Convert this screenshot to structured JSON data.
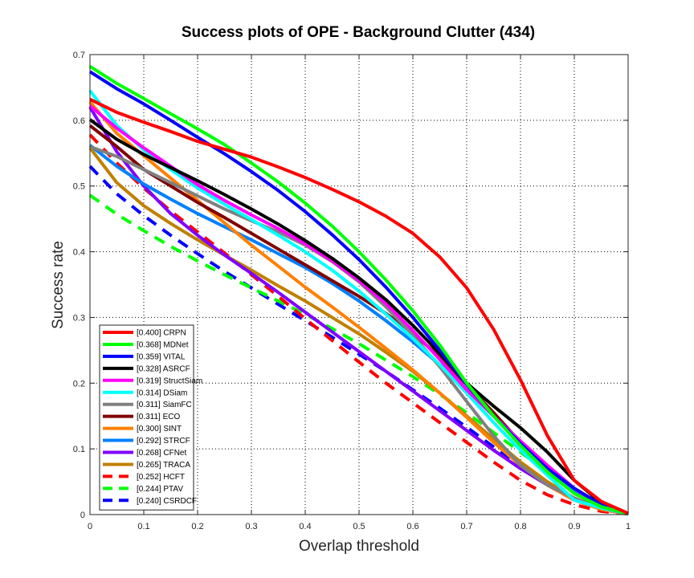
{
  "chart_data": {
    "type": "line",
    "title": "Success plots of OPE - Background Clutter (434)",
    "xlabel": "Overlap threshold",
    "ylabel": "Success rate",
    "xlim": [
      0,
      1
    ],
    "ylim": [
      0,
      0.7
    ],
    "xticks": [
      0,
      0.1,
      0.2,
      0.3,
      0.4,
      0.5,
      0.6,
      0.7,
      0.8,
      0.9,
      1
    ],
    "xtick_labels": [
      "0",
      "0.1",
      "0.2",
      "0.3",
      "0.4",
      "0.5",
      "0.6",
      "0.7",
      "0.8",
      "0.9",
      "1"
    ],
    "yticks": [
      0,
      0.1,
      0.2,
      0.3,
      0.4,
      0.5,
      0.6,
      0.7
    ],
    "ytick_labels": [
      "0",
      "0.1",
      "0.2",
      "0.3",
      "0.4",
      "0.5",
      "0.6",
      "0.7"
    ],
    "grid": true,
    "legend_position": "bottom-left",
    "x": [
      0,
      0.05,
      0.1,
      0.15,
      0.2,
      0.25,
      0.3,
      0.35,
      0.4,
      0.45,
      0.5,
      0.55,
      0.6,
      0.65,
      0.7,
      0.75,
      0.8,
      0.85,
      0.9,
      0.95,
      1
    ],
    "series": [
      {
        "name": "CRPN",
        "legend": "[0.400] CRPN",
        "color": "#ff0000",
        "dashed": false,
        "values": [
          0.632,
          0.612,
          0.597,
          0.583,
          0.568,
          0.556,
          0.544,
          0.529,
          0.513,
          0.495,
          0.476,
          0.454,
          0.428,
          0.392,
          0.345,
          0.282,
          0.205,
          0.12,
          0.052,
          0.02,
          0.002
        ]
      },
      {
        "name": "MDNet",
        "legend": "[0.368] MDNet",
        "color": "#00ff00",
        "dashed": false,
        "values": [
          0.682,
          0.656,
          0.633,
          0.61,
          0.587,
          0.563,
          0.535,
          0.506,
          0.474,
          0.439,
          0.4,
          0.357,
          0.31,
          0.258,
          0.2,
          0.15,
          0.105,
          0.065,
          0.032,
          0.012,
          0.001
        ]
      },
      {
        "name": "VITAL",
        "legend": "[0.359] VITAL",
        "color": "#0000ff",
        "dashed": false,
        "values": [
          0.674,
          0.648,
          0.625,
          0.6,
          0.574,
          0.549,
          0.522,
          0.493,
          0.461,
          0.426,
          0.388,
          0.346,
          0.3,
          0.25,
          0.198,
          0.15,
          0.108,
          0.07,
          0.04,
          0.015,
          0.001
        ]
      },
      {
        "name": "ASRCF",
        "legend": "[0.328] ASRCF",
        "color": "#000000",
        "dashed": false,
        "values": [
          0.601,
          0.571,
          0.548,
          0.528,
          0.508,
          0.487,
          0.465,
          0.442,
          0.417,
          0.39,
          0.36,
          0.327,
          0.288,
          0.245,
          0.2,
          0.165,
          0.132,
          0.095,
          0.052,
          0.018,
          0.001
        ]
      },
      {
        "name": "StructSiam",
        "legend": "[0.319] StructSiam",
        "color": "#ff00ff",
        "dashed": false,
        "values": [
          0.622,
          0.588,
          0.558,
          0.53,
          0.502,
          0.478,
          0.456,
          0.435,
          0.412,
          0.386,
          0.356,
          0.321,
          0.28,
          0.236,
          0.19,
          0.15,
          0.112,
          0.075,
          0.04,
          0.012,
          0.001
        ]
      },
      {
        "name": "DSiam",
        "legend": "[0.314] DSiam",
        "color": "#00ffff",
        "dashed": false,
        "values": [
          0.645,
          0.592,
          0.555,
          0.525,
          0.497,
          0.472,
          0.449,
          0.425,
          0.4,
          0.372,
          0.34,
          0.305,
          0.268,
          0.228,
          0.185,
          0.14,
          0.098,
          0.06,
          0.022,
          0.01,
          0.001
        ]
      },
      {
        "name": "SiamFC",
        "legend": "[0.311] SiamFC",
        "color": "#808080",
        "dashed": false,
        "values": [
          0.56,
          0.545,
          0.525,
          0.505,
          0.485,
          0.465,
          0.447,
          0.43,
          0.41,
          0.385,
          0.354,
          0.316,
          0.273,
          0.225,
          0.172,
          0.12,
          0.075,
          0.045,
          0.025,
          0.01,
          0.001
        ]
      },
      {
        "name": "ECO",
        "legend": "[0.311] ECO",
        "color": "#800000",
        "dashed": false,
        "values": [
          0.592,
          0.56,
          0.525,
          0.5,
          0.475,
          0.452,
          0.428,
          0.404,
          0.38,
          0.356,
          0.332,
          0.306,
          0.276,
          0.24,
          0.198,
          0.155,
          0.11,
          0.07,
          0.04,
          0.015,
          0.001
        ]
      },
      {
        "name": "SINT",
        "legend": "[0.300] SINT",
        "color": "#ff8000",
        "dashed": false,
        "values": [
          0.628,
          0.58,
          0.546,
          0.512,
          0.478,
          0.444,
          0.41,
          0.378,
          0.346,
          0.316,
          0.285,
          0.253,
          0.22,
          0.185,
          0.148,
          0.11,
          0.075,
          0.045,
          0.022,
          0.008,
          0.001
        ]
      },
      {
        "name": "STRCF",
        "legend": "[0.292] STRCF",
        "color": "#0080ff",
        "dashed": false,
        "values": [
          0.562,
          0.53,
          0.503,
          0.48,
          0.458,
          0.438,
          0.418,
          0.397,
          0.376,
          0.352,
          0.325,
          0.295,
          0.263,
          0.228,
          0.19,
          0.15,
          0.108,
          0.068,
          0.035,
          0.012,
          0.001
        ]
      },
      {
        "name": "CFNet",
        "legend": "[0.268] CFNet",
        "color": "#8000ff",
        "dashed": false,
        "values": [
          0.62,
          0.552,
          0.5,
          0.458,
          0.425,
          0.395,
          0.367,
          0.338,
          0.308,
          0.278,
          0.248,
          0.218,
          0.188,
          0.158,
          0.128,
          0.098,
          0.07,
          0.045,
          0.025,
          0.008,
          0.001
        ]
      },
      {
        "name": "TRACA",
        "legend": "[0.265] TRACA",
        "color": "#c08000",
        "dashed": false,
        "values": [
          0.558,
          0.505,
          0.47,
          0.443,
          0.418,
          0.395,
          0.372,
          0.348,
          0.325,
          0.3,
          0.275,
          0.247,
          0.218,
          0.185,
          0.15,
          0.115,
          0.08,
          0.05,
          0.025,
          0.008,
          0.001
        ]
      },
      {
        "name": "HCFT",
        "legend": "[0.252] HCFT",
        "color": "#ff0000",
        "dashed": true,
        "values": [
          0.578,
          0.535,
          0.497,
          0.462,
          0.43,
          0.398,
          0.365,
          0.332,
          0.298,
          0.265,
          0.232,
          0.2,
          0.17,
          0.14,
          0.11,
          0.08,
          0.052,
          0.03,
          0.015,
          0.005,
          0.001
        ]
      },
      {
        "name": "PTAV",
        "legend": "[0.244] PTAV",
        "color": "#00ff00",
        "dashed": true,
        "values": [
          0.486,
          0.457,
          0.432,
          0.408,
          0.386,
          0.365,
          0.345,
          0.325,
          0.305,
          0.283,
          0.26,
          0.235,
          0.21,
          0.183,
          0.155,
          0.125,
          0.095,
          0.065,
          0.038,
          0.015,
          0.001
        ]
      },
      {
        "name": "CSRDCF",
        "legend": "[0.240] CSRDCF",
        "color": "#0000ff",
        "dashed": true,
        "values": [
          0.53,
          0.488,
          0.455,
          0.425,
          0.397,
          0.37,
          0.345,
          0.32,
          0.295,
          0.27,
          0.244,
          0.218,
          0.19,
          0.162,
          0.133,
          0.103,
          0.073,
          0.045,
          0.022,
          0.008,
          0.001
        ]
      }
    ]
  }
}
